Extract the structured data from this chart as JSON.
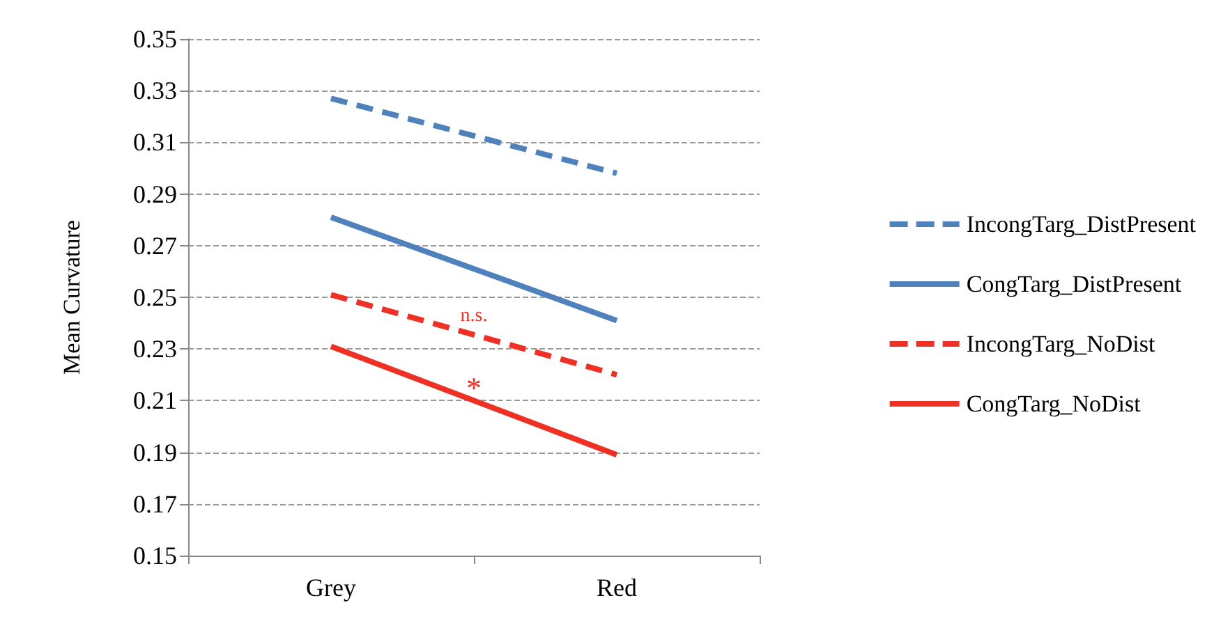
{
  "chart_data": {
    "type": "line",
    "ylabel": "Mean Curvature",
    "categories": [
      "Grey",
      "Red"
    ],
    "series": [
      {
        "name": "IncongTarg_DistPresent",
        "color": "#4f81bd",
        "line_style": "dashed",
        "values": [
          0.327,
          0.298
        ]
      },
      {
        "name": "CongTarg_DistPresent",
        "color": "#4f81bd",
        "line_style": "solid",
        "values": [
          0.281,
          0.241
        ]
      },
      {
        "name": "IncongTarg_NoDist",
        "color": "#ee3124",
        "line_style": "dashed",
        "values": [
          0.251,
          0.22
        ]
      },
      {
        "name": "CongTarg_NoDist",
        "color": "#ee3124",
        "line_style": "solid",
        "values": [
          0.231,
          0.189
        ]
      }
    ],
    "annotations": [
      {
        "text": "n.s.",
        "y": 0.239
      },
      {
        "text": "*",
        "y": 0.209
      }
    ],
    "ylim": [
      0.15,
      0.35
    ],
    "yticks": [
      0.15,
      0.17,
      0.19,
      0.21,
      0.23,
      0.25,
      0.27,
      0.29,
      0.31,
      0.33,
      0.35
    ],
    "grid": "y",
    "legend": "right",
    "marker": "none"
  }
}
